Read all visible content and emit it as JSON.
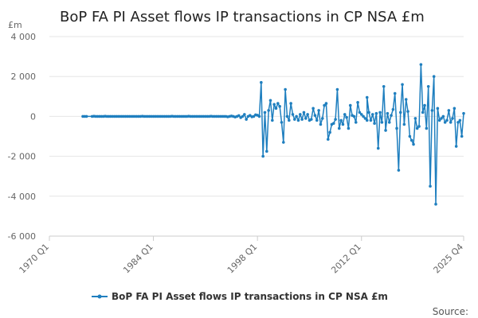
{
  "chart_data": {
    "type": "line",
    "title": "BoP FA PI Asset flows IP transactions in CP NSA £m",
    "ylabel": "£m",
    "xlabel": "",
    "ylim": [
      -6000,
      4000
    ],
    "yticks": [
      4000,
      2000,
      0,
      -2000,
      -4000,
      -6000
    ],
    "ytick_labels": [
      "4 000",
      "2 000",
      "0",
      "-2 000",
      "-4 000",
      "-6 000"
    ],
    "xlim": [
      1970.0,
      2025.75
    ],
    "xticks": [
      1970.0,
      1984.0,
      1998.0,
      2012.0,
      2025.75
    ],
    "xtick_labels": [
      "1970 Q1",
      "1984 Q1",
      "1998 Q1",
      "2012 Q1",
      "2025 Q4"
    ],
    "grid": true,
    "legend_position": "bottom",
    "series": [
      {
        "name": "BoP FA PI Asset flows IP transactions in CP NSA £m",
        "color": "#1f7fbf",
        "points": [
          [
            1974.5,
            0
          ],
          [
            1974.75,
            0
          ],
          [
            1975.0,
            0
          ],
          [
            1975.75,
            0
          ],
          [
            1976.0,
            10
          ],
          [
            1976.25,
            0
          ],
          [
            1976.5,
            0
          ],
          [
            1976.75,
            0
          ],
          [
            1977.0,
            0
          ],
          [
            1977.25,
            0
          ],
          [
            1977.5,
            10
          ],
          [
            1977.75,
            0
          ],
          [
            1978.0,
            0
          ],
          [
            1978.25,
            0
          ],
          [
            1978.5,
            0
          ],
          [
            1978.75,
            0
          ],
          [
            1979.0,
            0
          ],
          [
            1979.25,
            0
          ],
          [
            1979.5,
            0
          ],
          [
            1979.75,
            0
          ],
          [
            1980.0,
            0
          ],
          [
            1980.25,
            0
          ],
          [
            1980.5,
            0
          ],
          [
            1980.75,
            0
          ],
          [
            1981.0,
            0
          ],
          [
            1981.25,
            0
          ],
          [
            1981.5,
            0
          ],
          [
            1981.75,
            0
          ],
          [
            1982.0,
            0
          ],
          [
            1982.25,
            0
          ],
          [
            1982.5,
            10
          ],
          [
            1982.75,
            0
          ],
          [
            1983.0,
            0
          ],
          [
            1983.25,
            0
          ],
          [
            1983.5,
            0
          ],
          [
            1983.75,
            0
          ],
          [
            1984.0,
            0
          ],
          [
            1984.25,
            0
          ],
          [
            1984.5,
            0
          ],
          [
            1984.75,
            0
          ],
          [
            1985.0,
            0
          ],
          [
            1985.25,
            0
          ],
          [
            1985.5,
            0
          ],
          [
            1985.75,
            0
          ],
          [
            1986.0,
            0
          ],
          [
            1986.25,
            0
          ],
          [
            1986.5,
            10
          ],
          [
            1986.75,
            0
          ],
          [
            1987.0,
            0
          ],
          [
            1987.25,
            0
          ],
          [
            1987.5,
            0
          ],
          [
            1987.75,
            0
          ],
          [
            1988.0,
            0
          ],
          [
            1988.25,
            0
          ],
          [
            1988.5,
            0
          ],
          [
            1988.75,
            10
          ],
          [
            1989.0,
            0
          ],
          [
            1989.25,
            0
          ],
          [
            1989.5,
            0
          ],
          [
            1989.75,
            0
          ],
          [
            1990.0,
            0
          ],
          [
            1990.25,
            0
          ],
          [
            1990.5,
            0
          ],
          [
            1990.75,
            0
          ],
          [
            1991.0,
            0
          ],
          [
            1991.25,
            0
          ],
          [
            1991.5,
            0
          ],
          [
            1991.75,
            10
          ],
          [
            1992.0,
            0
          ],
          [
            1992.25,
            0
          ],
          [
            1992.5,
            0
          ],
          [
            1992.75,
            0
          ],
          [
            1993.0,
            0
          ],
          [
            1993.25,
            0
          ],
          [
            1993.5,
            0
          ],
          [
            1993.75,
            0
          ],
          [
            1994.0,
            -20
          ],
          [
            1994.25,
            0
          ],
          [
            1994.5,
            20
          ],
          [
            1994.75,
            0
          ],
          [
            1995.0,
            -30
          ],
          [
            1995.25,
            0
          ],
          [
            1995.5,
            40
          ],
          [
            1995.75,
            -60
          ],
          [
            1996.0,
            0
          ],
          [
            1996.25,
            100
          ],
          [
            1996.5,
            -150
          ],
          [
            1996.75,
            0
          ],
          [
            1997.0,
            50
          ],
          [
            1997.25,
            -20
          ],
          [
            1997.5,
            0
          ],
          [
            1997.75,
            80
          ],
          [
            1998.0,
            60
          ],
          [
            1998.25,
            0
          ],
          [
            1998.5,
            1700
          ],
          [
            1998.75,
            -2000
          ],
          [
            1999.0,
            200
          ],
          [
            1999.25,
            -1750
          ],
          [
            1999.5,
            300
          ],
          [
            1999.75,
            800
          ],
          [
            2000.0,
            -200
          ],
          [
            2000.25,
            600
          ],
          [
            2000.5,
            400
          ],
          [
            2000.75,
            650
          ],
          [
            2001.0,
            500
          ],
          [
            2001.25,
            -300
          ],
          [
            2001.5,
            -1300
          ],
          [
            2001.75,
            1350
          ],
          [
            2002.0,
            0
          ],
          [
            2002.25,
            -200
          ],
          [
            2002.5,
            650
          ],
          [
            2002.75,
            100
          ],
          [
            2003.0,
            -150
          ],
          [
            2003.25,
            0
          ],
          [
            2003.5,
            -200
          ],
          [
            2003.75,
            100
          ],
          [
            2004.0,
            -150
          ],
          [
            2004.25,
            200
          ],
          [
            2004.5,
            -100
          ],
          [
            2004.75,
            100
          ],
          [
            2005.0,
            -200
          ],
          [
            2005.25,
            -150
          ],
          [
            2005.5,
            400
          ],
          [
            2005.75,
            50
          ],
          [
            2006.0,
            -200
          ],
          [
            2006.25,
            300
          ],
          [
            2006.5,
            -400
          ],
          [
            2006.75,
            -100
          ],
          [
            2007.0,
            550
          ],
          [
            2007.25,
            650
          ],
          [
            2007.5,
            -1150
          ],
          [
            2007.75,
            -800
          ],
          [
            2008.0,
            -400
          ],
          [
            2008.25,
            -350
          ],
          [
            2008.5,
            -150
          ],
          [
            2008.75,
            1350
          ],
          [
            2009.0,
            -600
          ],
          [
            2009.25,
            -200
          ],
          [
            2009.5,
            -400
          ],
          [
            2009.75,
            100
          ],
          [
            2010.0,
            -50
          ],
          [
            2010.25,
            -600
          ],
          [
            2010.5,
            550
          ],
          [
            2010.75,
            50
          ],
          [
            2011.0,
            0
          ],
          [
            2011.25,
            -300
          ],
          [
            2011.5,
            700
          ],
          [
            2011.75,
            200
          ],
          [
            2012.0,
            100
          ],
          [
            2012.25,
            0
          ],
          [
            2012.5,
            -100
          ],
          [
            2012.75,
            -200
          ],
          [
            2012.75,
            950
          ],
          [
            2013.0,
            200
          ],
          [
            2013.25,
            -200
          ],
          [
            2013.5,
            100
          ],
          [
            2013.75,
            -350
          ],
          [
            2014.0,
            150
          ],
          [
            2014.25,
            -1600
          ],
          [
            2014.5,
            200
          ],
          [
            2014.75,
            -300
          ],
          [
            2015.0,
            1500
          ],
          [
            2015.25,
            -700
          ],
          [
            2015.5,
            150
          ],
          [
            2015.75,
            -300
          ],
          [
            2016.0,
            50
          ],
          [
            2016.25,
            350
          ],
          [
            2016.5,
            1150
          ],
          [
            2016.75,
            -600
          ],
          [
            2017.0,
            -2700
          ],
          [
            2017.25,
            200
          ],
          [
            2017.5,
            1600
          ],
          [
            2017.75,
            -400
          ],
          [
            2018.0,
            850
          ],
          [
            2018.25,
            250
          ],
          [
            2018.5,
            -1000
          ],
          [
            2018.75,
            -1200
          ],
          [
            2019.0,
            -1400
          ],
          [
            2019.25,
            -100
          ],
          [
            2019.5,
            -600
          ],
          [
            2019.75,
            -500
          ],
          [
            2020.0,
            2600
          ],
          [
            2020.25,
            200
          ],
          [
            2020.5,
            550
          ],
          [
            2020.75,
            -600
          ],
          [
            2021.0,
            1500
          ],
          [
            2021.25,
            -3500
          ],
          [
            2021.5,
            300
          ],
          [
            2021.75,
            2000
          ],
          [
            2022.0,
            -4400
          ],
          [
            2022.25,
            400
          ],
          [
            2022.5,
            -200
          ],
          [
            2022.75,
            -100
          ],
          [
            2023.0,
            0
          ],
          [
            2023.25,
            -300
          ],
          [
            2023.5,
            -200
          ],
          [
            2023.75,
            300
          ],
          [
            2024.0,
            -300
          ],
          [
            2024.25,
            -100
          ],
          [
            2024.5,
            400
          ],
          [
            2024.75,
            -1500
          ],
          [
            2025.0,
            -300
          ],
          [
            2025.25,
            -200
          ],
          [
            2025.5,
            -1000
          ],
          [
            2025.75,
            150
          ]
        ]
      }
    ]
  },
  "source_label": "Source:"
}
